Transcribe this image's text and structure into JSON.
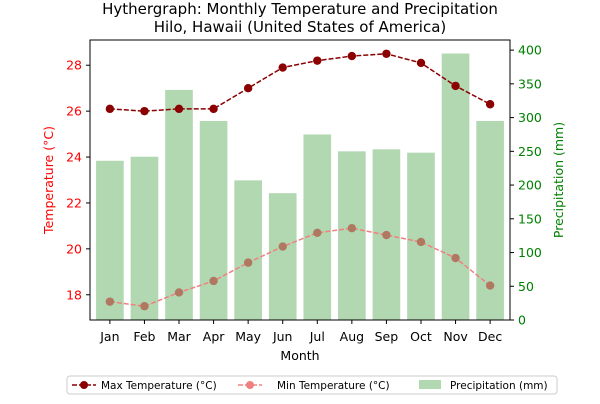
{
  "chart_data": {
    "type": "bar",
    "title": "Hythergraph: Monthly Temperature and Precipitation",
    "subtitle": "Hilo, Hawaii (United States of America)",
    "xlabel": "Month",
    "ylabel_left": "Temperature (°C)",
    "ylabel_right": "Precipitation (mm)",
    "categories": [
      "Jan",
      "Feb",
      "Mar",
      "Apr",
      "May",
      "Jun",
      "Jul",
      "Aug",
      "Sep",
      "Oct",
      "Nov",
      "Dec"
    ],
    "ylim_left": [
      16.9,
      29.1
    ],
    "ylim_right": [
      0,
      415
    ],
    "yticks_left": [
      18,
      20,
      22,
      24,
      26,
      28
    ],
    "yticks_right": [
      0,
      50,
      100,
      150,
      200,
      250,
      300,
      350,
      400
    ],
    "series": [
      {
        "name": "Max Temperature (°C)",
        "type": "line",
        "axis": "left",
        "color": "#8b0000",
        "linestyle": "dashed",
        "values": [
          26.1,
          26.0,
          26.1,
          26.1,
          27.0,
          27.9,
          28.2,
          28.4,
          28.5,
          28.1,
          27.1,
          26.3
        ]
      },
      {
        "name": "Min Temperature (°C)",
        "type": "line",
        "axis": "left",
        "color": "#f08080",
        "linestyle": "dashed",
        "values": [
          17.7,
          17.5,
          18.1,
          18.6,
          19.4,
          20.1,
          20.7,
          20.9,
          20.6,
          20.3,
          19.6,
          18.4
        ]
      },
      {
        "name": "Precipitation (mm)",
        "type": "bar",
        "axis": "right",
        "color": "#b2d8b2",
        "values": [
          236,
          242,
          341,
          295,
          207,
          188,
          275,
          250,
          253,
          248,
          395,
          295
        ]
      }
    ],
    "colors": {
      "left_axis": "#ff0000",
      "right_axis": "#008000",
      "min_marker": "#b07860"
    },
    "legend_position": "bottom-center",
    "grid": false
  }
}
